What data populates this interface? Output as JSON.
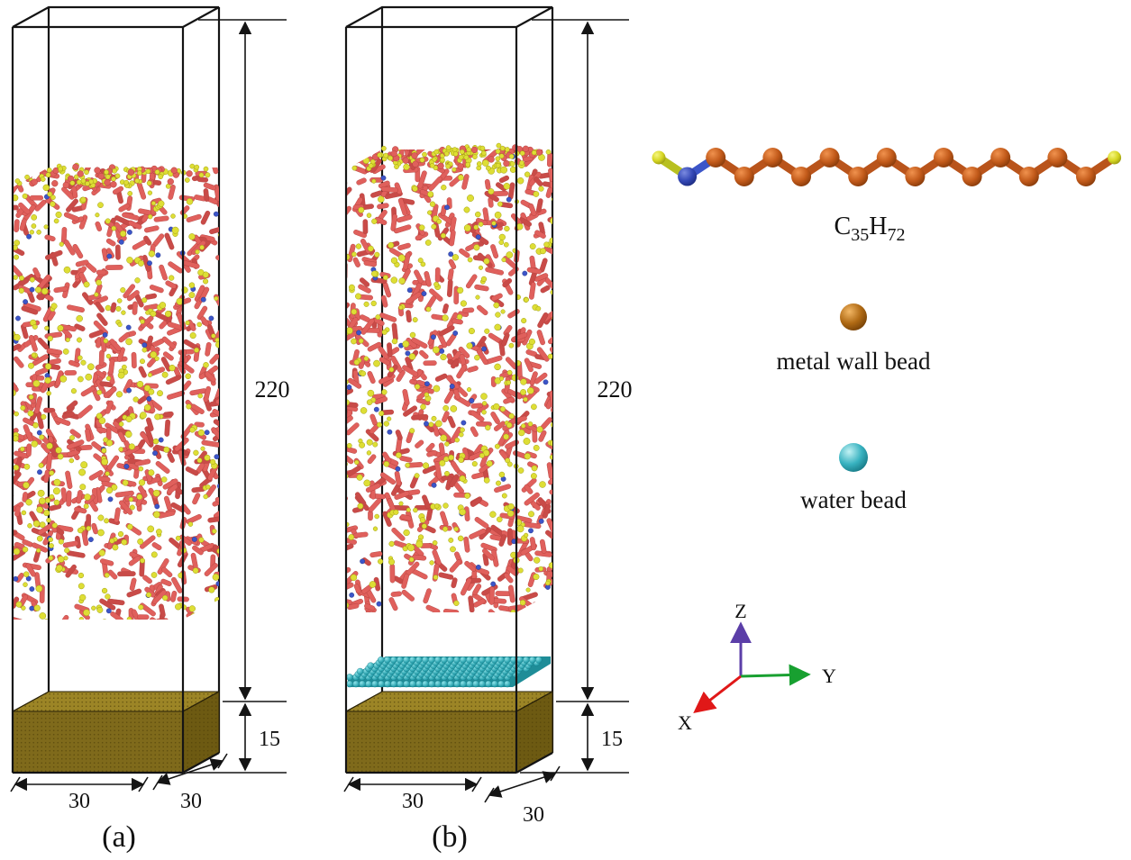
{
  "panels": [
    {
      "label": "(a)",
      "dims": {
        "height": "220",
        "wall": "15",
        "width": "30",
        "depth": "30"
      }
    },
    {
      "label": "(b)",
      "dims": {
        "height": "220",
        "wall": "15",
        "width": "30",
        "depth": "30"
      }
    }
  ],
  "legend": {
    "molecule_formula": {
      "element1": "C",
      "sub1": "35",
      "element2": "H",
      "sub2": "72"
    },
    "metal_bead": "metal wall bead",
    "water_bead": "water bead"
  },
  "axes": {
    "x": "X",
    "y": "Y",
    "z": "Z"
  },
  "colors": {
    "rod": "#e0605c",
    "rod_dark": "#c94b48",
    "bead_yellow": "#dede35",
    "bead_blue": "#3c55c8",
    "wall_top": "#9c8526",
    "wall_front": "#7f6a1b",
    "wall_side": "#6d5a12",
    "water": "#32b4c0",
    "molecule_orange": "#c25a1a",
    "axis_x": "#e01818",
    "axis_y": "#18a030",
    "axis_z": "#5b3ea8",
    "line": "#141414"
  }
}
